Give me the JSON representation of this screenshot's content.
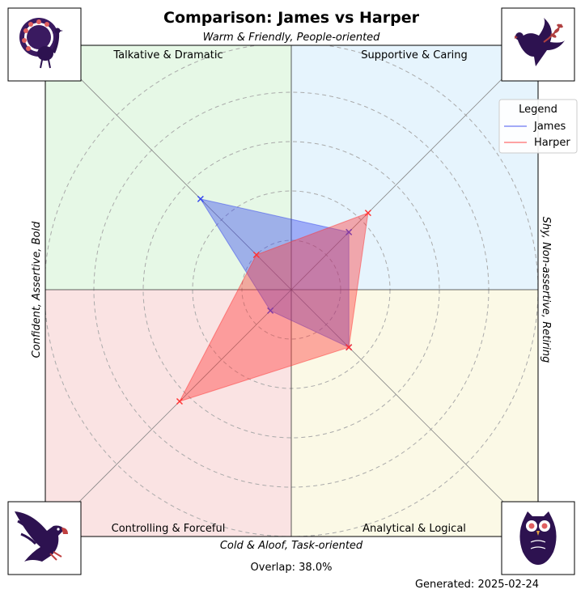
{
  "chart_data": {
    "type": "radar",
    "title": "Comparison: James vs Harper",
    "axes": {
      "top": "Warm & Friendly, People-oriented",
      "bottom": "Cold & Aloof, Task-oriented",
      "left": "Confident, Assertive, Bold",
      "right": "Shy, Non-assertive, Retiring"
    },
    "quadrants": [
      {
        "name": "Talkative & Dramatic",
        "position": "top-left",
        "color": "#e6f8e6",
        "icon": "peacock-icon"
      },
      {
        "name": "Supportive & Caring",
        "position": "top-right",
        "color": "#e6f4fd",
        "icon": "dove-icon"
      },
      {
        "name": "Controlling & Forceful",
        "position": "bottom-left",
        "color": "#fae3e3",
        "icon": "eagle-icon"
      },
      {
        "name": "Analytical & Logical",
        "position": "bottom-right",
        "color": "#fbf9e6",
        "icon": "owl-icon"
      }
    ],
    "directions": [
      "top-right",
      "bottom-right",
      "bottom-left",
      "top-left"
    ],
    "series": [
      {
        "name": "James",
        "color": "#3344ee",
        "values": [
          0.33,
          0.33,
          0.12,
          0.52
        ]
      },
      {
        "name": "Harper",
        "color": "#ff3333",
        "values": [
          0.44,
          0.33,
          0.64,
          0.2
        ]
      }
    ],
    "rlim": [
      0,
      1
    ],
    "grid": true,
    "legend": {
      "title": "Legend",
      "placement": "top-right"
    },
    "overlap_text": "Overlap: 38.0%",
    "generated_text": "Generated: 2025-02-24"
  }
}
